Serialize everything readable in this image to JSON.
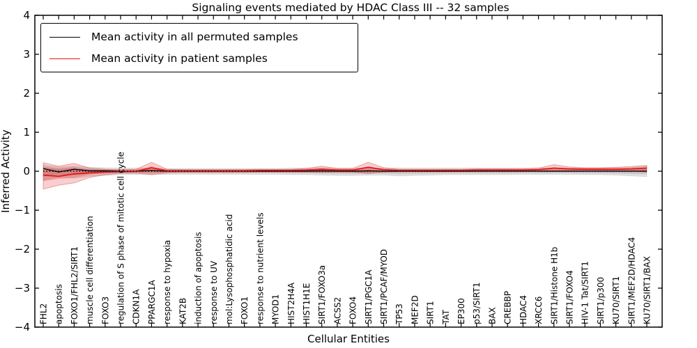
{
  "title": "Signaling events mediated by HDAC Class III -- 32 samples",
  "axes": {
    "xlabel": "Cellular Entities",
    "ylabel": "Inferred Activity",
    "yticks": [
      -4,
      -3,
      -2,
      -1,
      0,
      1,
      2,
      3,
      4
    ],
    "ylim": [
      -4,
      4
    ]
  },
  "chart_data": {
    "type": "line",
    "title": "Signaling events mediated by HDAC Class III -- 32 samples",
    "xlabel": "Cellular Entities",
    "ylabel": "Inferred Activity",
    "ylim": [
      -4,
      4
    ],
    "grid": false,
    "legend_position": "upper-left",
    "zero_line": {
      "style": "dotted",
      "color": "#000000"
    },
    "categories": [
      "FHL2",
      "apoptosis",
      "FOXO1/FHL2/SIRT1",
      "muscle cell differentiation",
      "FOXO3",
      "regulation of S phase of mitotic cell cycle",
      "CDKN1A",
      "PPARGC1A",
      "response to hypoxia",
      "KAT2B",
      "induction of apoptosis",
      "response to UV",
      "mol:Lysophosphatidic acid",
      "FOXO1",
      "response to nutrient levels",
      "MYOD1",
      "HIST2H4A",
      "HIST1H1E",
      "SIRT1/FOXO3a",
      "ACSS2",
      "FOXO4",
      "SIRT1/PGC1A",
      "SIRT1/PCAF/MYOD",
      "TP53",
      "MEF2D",
      "SIRT1",
      "TAT",
      "EP300",
      "p53/SIRT1",
      "BAX",
      "CREBBP",
      "HDAC4",
      "XRCC6",
      "SIRT1/Histone H1b",
      "SIRT1/FOXO4",
      "HIV-1 Tat/SIRT1",
      "SIRT1/p300",
      "KU70/SIRT1",
      "SIRT1/MEF2D/HDAC4",
      "KU70/SIRT1/BAX"
    ],
    "series": [
      {
        "name": "Mean activity in all permuted samples",
        "color": "#000000",
        "width": 1.3,
        "values": [
          0.07,
          -0.02,
          0.05,
          0.01,
          0.01,
          0,
          0,
          0.02,
          0,
          0,
          0,
          0,
          0,
          0,
          0,
          0,
          0,
          0,
          0.01,
          0,
          0,
          0.01,
          0,
          0,
          0,
          0,
          0,
          0,
          0,
          0,
          0,
          0,
          0,
          0,
          0,
          0,
          0,
          0,
          0,
          0
        ]
      },
      {
        "name": "Mean activity in patient samples",
        "color": "#e81414",
        "width": 1.8,
        "values": [
          -0.1,
          -0.13,
          -0.07,
          -0.04,
          -0.02,
          -0.01,
          0.0,
          0.09,
          0.01,
          0.01,
          0.01,
          0.01,
          0.01,
          0.01,
          0.02,
          0.02,
          0.02,
          0.03,
          0.05,
          0.03,
          0.03,
          0.1,
          0.04,
          0.02,
          0.02,
          0.02,
          0.02,
          0.02,
          0.03,
          0.03,
          0.03,
          0.03,
          0.04,
          0.08,
          0.06,
          0.05,
          0.05,
          0.05,
          0.06,
          0.08
        ]
      }
    ],
    "bands": [
      {
        "name": "permuted-band",
        "fill": "rgba(0,0,0,0.12)",
        "stroke": "rgba(0,0,0,0.08)",
        "upper": [
          0.16,
          0.11,
          0.13,
          0.1,
          0.09,
          0.08,
          0.08,
          0.08,
          0.07,
          0.07,
          0.07,
          0.07,
          0.07,
          0.07,
          0.07,
          0.07,
          0.08,
          0.08,
          0.09,
          0.08,
          0.08,
          0.08,
          0.08,
          0.08,
          0.08,
          0.08,
          0.08,
          0.08,
          0.08,
          0.08,
          0.08,
          0.08,
          0.08,
          0.08,
          0.08,
          0.08,
          0.09,
          0.09,
          0.1,
          0.13
        ],
        "lower": [
          -0.24,
          -0.16,
          -0.18,
          -0.13,
          -0.11,
          -0.09,
          -0.08,
          -0.08,
          -0.08,
          -0.08,
          -0.08,
          -0.08,
          -0.08,
          -0.08,
          -0.08,
          -0.08,
          -0.09,
          -0.09,
          -0.1,
          -0.11,
          -0.11,
          -0.1,
          -0.1,
          -0.12,
          -0.11,
          -0.1,
          -0.09,
          -0.09,
          -0.09,
          -0.09,
          -0.09,
          -0.08,
          -0.08,
          -0.08,
          -0.08,
          -0.09,
          -0.09,
          -0.1,
          -0.12,
          -0.14
        ]
      },
      {
        "name": "patient-band",
        "fill": "rgba(230,30,30,0.22)",
        "stroke": "rgba(200,30,30,0.35)",
        "upper": [
          0.22,
          0.13,
          0.2,
          0.08,
          0.05,
          0.04,
          0.05,
          0.23,
          0.05,
          0.04,
          0.04,
          0.04,
          0.04,
          0.04,
          0.05,
          0.05,
          0.05,
          0.07,
          0.13,
          0.07,
          0.07,
          0.23,
          0.09,
          0.05,
          0.05,
          0.05,
          0.05,
          0.05,
          0.06,
          0.06,
          0.06,
          0.06,
          0.08,
          0.17,
          0.11,
          0.09,
          0.09,
          0.1,
          0.12,
          0.15
        ],
        "lower": [
          -0.46,
          -0.36,
          -0.3,
          -0.16,
          -0.09,
          -0.05,
          -0.05,
          -0.09,
          -0.04,
          -0.03,
          -0.03,
          -0.03,
          -0.03,
          -0.03,
          -0.02,
          -0.02,
          -0.02,
          -0.02,
          -0.03,
          -0.02,
          -0.02,
          -0.06,
          -0.02,
          -0.01,
          -0.01,
          -0.01,
          -0.01,
          -0.01,
          0,
          0,
          0,
          0,
          0,
          0.01,
          0.01,
          0.01,
          0.01,
          0.01,
          0.01,
          -0.02
        ]
      }
    ]
  }
}
